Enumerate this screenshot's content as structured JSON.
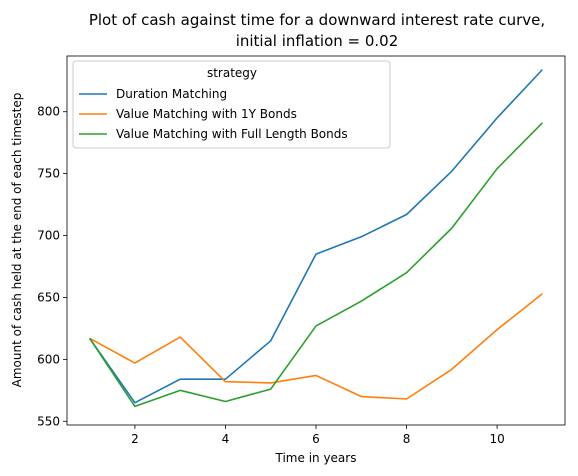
{
  "chart_data": {
    "type": "line",
    "title_line1": "Plot of cash against time for a downward interest rate curve,",
    "title_line2": "initial inflation = 0.02",
    "xlabel": "Time in years",
    "ylabel": "Amount of cash held at the end of each timestep",
    "xlim": [
      0.5,
      11.5
    ],
    "ylim": [
      547,
      845
    ],
    "xticks": [
      2,
      4,
      6,
      8,
      10
    ],
    "yticks": [
      550,
      600,
      650,
      700,
      750,
      800
    ],
    "legend": {
      "title": "strategy",
      "placement": "upper left"
    },
    "x": [
      1,
      2,
      3,
      4,
      5,
      6,
      7,
      8,
      9,
      10,
      11
    ],
    "series": [
      {
        "name": "Duration Matching",
        "color": "#1f77b4",
        "values": [
          617,
          565,
          584,
          584,
          615,
          685,
          699,
          717,
          752,
          795,
          834
        ]
      },
      {
        "name": "Value Matching with 1Y Bonds",
        "color": "#ff7f0e",
        "values": [
          617,
          597,
          618,
          582,
          581,
          587,
          570,
          568,
          592,
          624,
          653
        ]
      },
      {
        "name": "Value Matching with Full Length Bonds",
        "color": "#2ca02c",
        "values": [
          617,
          562,
          575,
          566,
          576,
          627,
          647,
          670,
          706,
          754,
          791
        ]
      }
    ]
  }
}
